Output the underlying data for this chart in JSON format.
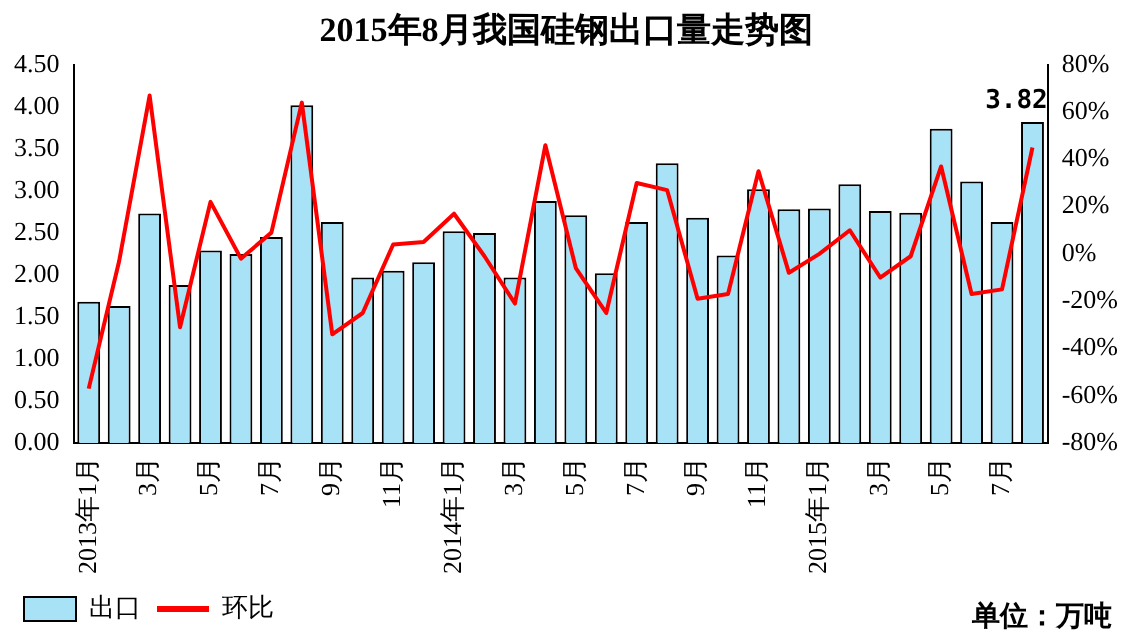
{
  "chart_data": {
    "type": "bar",
    "title": "2015年8月我国硅钢出口量走势图",
    "categories": [
      "2013年1月",
      null,
      "3月",
      null,
      "5月",
      null,
      "7月",
      null,
      "9月",
      null,
      "11月",
      null,
      "2014年1月",
      null,
      "3月",
      null,
      "5月",
      null,
      "7月",
      null,
      "9月",
      null,
      "11月",
      null,
      "2015年1月",
      null,
      "3月",
      null,
      "5月",
      null,
      "7月",
      null
    ],
    "series": [
      {
        "name": "出口",
        "color": "#a8e2f7",
        "values": [
          1.68,
          1.63,
          2.73,
          1.88,
          2.29,
          2.25,
          2.45,
          4.02,
          2.63,
          1.97,
          2.05,
          2.15,
          2.52,
          2.5,
          1.97,
          2.88,
          2.71,
          2.02,
          2.63,
          3.33,
          2.68,
          2.23,
          3.02,
          2.78,
          2.79,
          3.08,
          2.76,
          2.74,
          3.74,
          3.11,
          2.63,
          3.82
        ],
        "value_labels": [
          null,
          null,
          null,
          null,
          null,
          null,
          null,
          null,
          null,
          null,
          null,
          null,
          null,
          null,
          null,
          null,
          null,
          null,
          null,
          null,
          null,
          null,
          null,
          null,
          null,
          null,
          null,
          null,
          null,
          null,
          null,
          "3.82"
        ]
      },
      {
        "name": "环比",
        "type": "line",
        "axis": "y2",
        "color": "#ff0000",
        "values": [
          -57,
          -3,
          67,
          -31,
          22,
          -2,
          9,
          64,
          -34,
          -25,
          4,
          5,
          17,
          -1,
          -21,
          46,
          -6,
          -25,
          30,
          27,
          -19,
          -17,
          35,
          -8,
          0,
          10,
          -10,
          -1,
          37,
          -17,
          -15,
          45
        ]
      }
    ],
    "ylim": [
      0,
      4.5
    ],
    "yticks": [
      {
        "value": 0,
        "label": "0.00"
      },
      {
        "value": 0.5,
        "label": "0.50"
      },
      {
        "value": 1,
        "label": "1.00"
      },
      {
        "value": 1.5,
        "label": "1.50"
      },
      {
        "value": 2,
        "label": "2.00"
      },
      {
        "value": 2.5,
        "label": "2.50"
      },
      {
        "value": 3,
        "label": "3.00"
      },
      {
        "value": 3.5,
        "label": "3.50"
      },
      {
        "value": 4,
        "label": "4.00"
      },
      {
        "value": 4.5,
        "label": "4.50"
      }
    ],
    "y2lim": [
      -80,
      80
    ],
    "y2ticks": [
      {
        "value": -80,
        "label": "-80%"
      },
      {
        "value": -60,
        "label": "-60%"
      },
      {
        "value": -40,
        "label": "-40%"
      },
      {
        "value": -20,
        "label": "-20%"
      },
      {
        "value": 0,
        "label": "0%"
      },
      {
        "value": 20,
        "label": "20%"
      },
      {
        "value": 40,
        "label": "40%"
      },
      {
        "value": 60,
        "label": "60%"
      },
      {
        "value": 80,
        "label": "80%"
      }
    ],
    "annotations": [
      "单位：万吨"
    ],
    "legend": "bottom",
    "grid": false,
    "marker": "none",
    "line_style": "solid"
  }
}
